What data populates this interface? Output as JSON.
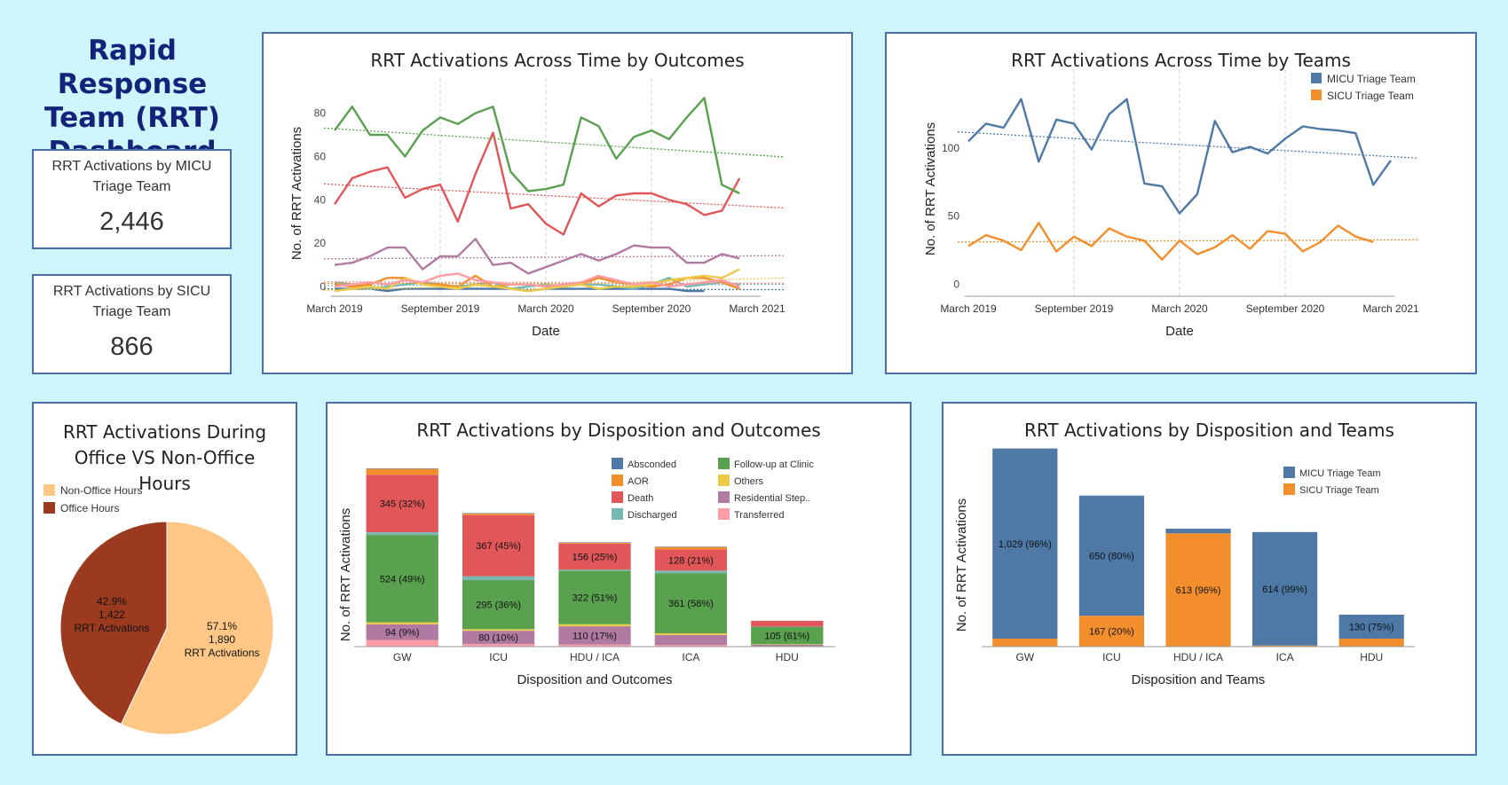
{
  "dashboard_title": "Rapid Response Team (RRT) Dashboard",
  "kpis": [
    {
      "label": "RRT Activations by MICU Triage Team",
      "value": "2,446"
    },
    {
      "label": "RRT Activations by SICU Triage Team",
      "value": "866"
    }
  ],
  "colors": {
    "micu": "#4e79a7",
    "sicu": "#f28e2b",
    "death": "#e15759",
    "discharged": "#76b7b2",
    "followup": "#59a14f",
    "others": "#edc948",
    "residential": "#b07aa1",
    "transferred": "#ff9da7",
    "absconded": "#4e79a7",
    "aor": "#f28e2b",
    "office": "#9c3a1f",
    "nonoffice": "#ffc785"
  },
  "chart_data": [
    {
      "id": "outcomes_time",
      "type": "line",
      "title": "RRT Activations Across Time by Outcomes",
      "xlabel": "Date",
      "ylabel": "No. of RRT Activations",
      "x_ticks": [
        "March 2019",
        "September 2019",
        "March 2020",
        "September 2020",
        "March 2021"
      ],
      "y_ticks": [
        0,
        20,
        40,
        60,
        80
      ],
      "ylim": [
        -2,
        88
      ],
      "x": [
        "2019-03",
        "2019-04",
        "2019-05",
        "2019-06",
        "2019-07",
        "2019-08",
        "2019-09",
        "2019-10",
        "2019-11",
        "2019-12",
        "2020-01",
        "2020-02",
        "2020-03",
        "2020-04",
        "2020-05",
        "2020-06",
        "2020-07",
        "2020-08",
        "2020-09",
        "2020-10",
        "2020-11",
        "2020-12",
        "2021-01",
        "2021-02",
        "2021-03"
      ],
      "trendlines": true,
      "series": [
        {
          "name": "Follow-up at Clinic",
          "color": "#59a14f",
          "values": [
            72,
            83,
            70,
            70,
            60,
            72,
            78,
            75,
            80,
            83,
            53,
            44,
            45,
            47,
            78,
            74,
            59,
            69,
            72,
            68,
            78,
            87,
            47,
            43,
            null
          ]
        },
        {
          "name": "Death",
          "color": "#e15759",
          "values": [
            38,
            50,
            53,
            55,
            41,
            45,
            47,
            30,
            52,
            71,
            36,
            38,
            29,
            24,
            43,
            37,
            42,
            43,
            43,
            40,
            38,
            33,
            35,
            50,
            null
          ]
        },
        {
          "name": "Residential Step..",
          "color": "#b07aa1",
          "values": [
            10,
            11,
            14,
            18,
            18,
            8,
            14,
            14,
            22,
            10,
            11,
            6,
            9,
            12,
            15,
            12,
            15,
            19,
            18,
            18,
            11,
            11,
            15,
            13,
            null
          ]
        },
        {
          "name": "Transferred",
          "color": "#ff9da7",
          "values": [
            0,
            1,
            2,
            1,
            3,
            2,
            5,
            6,
            3,
            2,
            1,
            1,
            0,
            1,
            2,
            5,
            3,
            1,
            2,
            0,
            1,
            2,
            3,
            0,
            null
          ]
        },
        {
          "name": "Others",
          "color": "#edc948",
          "values": [
            -2,
            -1,
            0,
            -1,
            4,
            1,
            0,
            -1,
            1,
            0,
            -1,
            -2,
            -1,
            0,
            1,
            -1,
            0,
            0,
            1,
            3,
            4,
            5,
            4,
            8,
            null
          ]
        },
        {
          "name": "AOR",
          "color": "#f28e2b",
          "values": [
            1,
            0,
            1,
            4,
            4,
            1,
            1,
            0,
            5,
            0,
            1,
            1,
            0,
            0,
            1,
            4,
            2,
            1,
            0,
            1,
            4,
            4,
            2,
            -1,
            null
          ]
        },
        {
          "name": "Discharged",
          "color": "#76b7b2",
          "values": [
            2,
            1,
            -1,
            0,
            1,
            2,
            1,
            0,
            1,
            2,
            -1,
            0,
            1,
            0,
            1,
            1,
            0,
            -1,
            1,
            4,
            0,
            1,
            2,
            1,
            null
          ]
        },
        {
          "name": "Absconded",
          "color": "#4e79a7",
          "values": [
            -1,
            -1,
            -1,
            -2,
            -1,
            -1,
            -1,
            -1,
            -1,
            -1,
            -1,
            -2,
            -1,
            -1,
            -1,
            -1,
            -1,
            -1,
            -1,
            -1,
            -2,
            -2,
            null,
            null,
            null
          ]
        }
      ]
    },
    {
      "id": "teams_time",
      "type": "line",
      "title": "RRT Activations Across Time by Teams",
      "xlabel": "Date",
      "ylabel": "No. of RRT Activations",
      "x_ticks": [
        "March 2019",
        "September 2019",
        "March 2020",
        "September 2020",
        "March 2021"
      ],
      "y_ticks": [
        0,
        50,
        100
      ],
      "ylim": [
        -5,
        145
      ],
      "x": [
        "2019-03",
        "2019-04",
        "2019-05",
        "2019-06",
        "2019-07",
        "2019-08",
        "2019-09",
        "2019-10",
        "2019-11",
        "2019-12",
        "2020-01",
        "2020-02",
        "2020-03",
        "2020-04",
        "2020-05",
        "2020-06",
        "2020-07",
        "2020-08",
        "2020-09",
        "2020-10",
        "2020-11",
        "2020-12",
        "2021-01",
        "2021-02",
        "2021-03"
      ],
      "trendlines": true,
      "legend": [
        "MICU Triage Team",
        "SICU Triage Team"
      ],
      "series": [
        {
          "name": "MICU Triage Team",
          "color": "#4e79a7",
          "values": [
            105,
            118,
            115,
            136,
            90,
            121,
            118,
            99,
            125,
            136,
            74,
            72,
            52,
            66,
            120,
            97,
            101,
            96,
            107,
            116,
            114,
            113,
            111,
            73,
            91
          ]
        },
        {
          "name": "SICU Triage Team",
          "color": "#f28e2b",
          "values": [
            28,
            36,
            32,
            25,
            45,
            24,
            35,
            28,
            41,
            35,
            32,
            18,
            32,
            22,
            27,
            36,
            26,
            39,
            37,
            24,
            31,
            43,
            35,
            31,
            null
          ]
        }
      ]
    },
    {
      "id": "office_hours",
      "type": "pie",
      "title": "RRT Activations During Office VS Non-Office Hours",
      "legend": [
        "Non-Office Hours",
        "Office Hours"
      ],
      "slices": [
        {
          "label": "Non-Office Hours",
          "value": 1890,
          "pct": "57.1%",
          "count": "1,890",
          "unit": "RRT Activations",
          "color": "#ffc785"
        },
        {
          "label": "Office Hours",
          "value": 1422,
          "pct": "42.9%",
          "count": "1,422",
          "unit": "RRT Activations",
          "color": "#9c3a1f"
        }
      ]
    },
    {
      "id": "disposition_outcomes",
      "type": "bar",
      "stacked": true,
      "title": "RRT Activations by Disposition and Outcomes",
      "xlabel": "Disposition and Outcomes",
      "ylabel": "No. of RRT Activations",
      "ylim": [
        0,
        1075
      ],
      "categories": [
        "GW",
        "ICU",
        "HDU / ICA",
        "ICA",
        "HDU"
      ],
      "legend": [
        "Absconded",
        "AOR",
        "Death",
        "Discharged",
        "Follow-up at Clinic",
        "Others",
        "Residential Step..",
        "Transferred"
      ],
      "series": [
        {
          "name": "Transferred",
          "color": "#ff9da7",
          "values": [
            40,
            15,
            12,
            10,
            3
          ]
        },
        {
          "name": "Residential Step..",
          "color": "#b07aa1",
          "values": [
            94,
            80,
            110,
            60,
            8
          ]
        },
        {
          "name": "Others",
          "color": "#edc948",
          "values": [
            12,
            10,
            12,
            10,
            3
          ]
        },
        {
          "name": "Follow-up at Clinic",
          "color": "#59a14f",
          "values": [
            524,
            295,
            322,
            361,
            105
          ]
        },
        {
          "name": "Discharged",
          "color": "#76b7b2",
          "values": [
            16,
            22,
            6,
            15,
            1
          ]
        },
        {
          "name": "Death",
          "color": "#e15759",
          "values": [
            345,
            367,
            156,
            128,
            35
          ]
        },
        {
          "name": "AOR",
          "color": "#f28e2b",
          "values": [
            36,
            10,
            6,
            14,
            0
          ]
        },
        {
          "name": "Absconded",
          "color": "#4e79a7",
          "values": [
            2,
            2,
            2,
            2,
            0
          ]
        }
      ],
      "labels": [
        {
          "series": "Residential Step..",
          "cat": 0,
          "text": "94 (9%)"
        },
        {
          "series": "Follow-up at Clinic",
          "cat": 0,
          "text": "524 (49%)"
        },
        {
          "series": "Death",
          "cat": 0,
          "text": "345 (32%)"
        },
        {
          "series": "Residential Step..",
          "cat": 1,
          "text": "80 (10%)"
        },
        {
          "series": "Follow-up at Clinic",
          "cat": 1,
          "text": "295 (36%)"
        },
        {
          "series": "Death",
          "cat": 1,
          "text": "367 (45%)"
        },
        {
          "series": "Residential Step..",
          "cat": 2,
          "text": "110 (17%)"
        },
        {
          "series": "Follow-up at Clinic",
          "cat": 2,
          "text": "322 (51%)"
        },
        {
          "series": "Death",
          "cat": 2,
          "text": "156 (25%)"
        },
        {
          "series": "Follow-up at Clinic",
          "cat": 3,
          "text": "361 (58%)"
        },
        {
          "series": "Death",
          "cat": 3,
          "text": "128 (21%)"
        },
        {
          "series": "Follow-up at Clinic",
          "cat": 4,
          "text": "105 (61%)"
        }
      ]
    },
    {
      "id": "disposition_teams",
      "type": "bar",
      "stacked": true,
      "title": "RRT Activations by Disposition and Teams",
      "xlabel": "Disposition and Teams",
      "ylabel": "No. of RRT Activations",
      "ylim": [
        0,
        1075
      ],
      "categories": [
        "GW",
        "ICU",
        "HDU / ICA",
        "ICA",
        "HDU"
      ],
      "legend": [
        "MICU Triage Team",
        "SICU Triage Team"
      ],
      "series": [
        {
          "name": "SICU Triage Team",
          "color": "#f28e2b",
          "values": [
            43,
            167,
            613,
            6,
            43
          ]
        },
        {
          "name": "MICU Triage Team",
          "color": "#4e79a7",
          "values": [
            1029,
            650,
            25,
            614,
            130
          ]
        }
      ],
      "labels": [
        {
          "series": "MICU Triage Team",
          "cat": 0,
          "text": "1,029 (96%)"
        },
        {
          "series": "MICU Triage Team",
          "cat": 1,
          "text": "650 (80%)"
        },
        {
          "series": "SICU Triage Team",
          "cat": 1,
          "text": "167 (20%)"
        },
        {
          "series": "SICU Triage Team",
          "cat": 2,
          "text": "613 (96%)"
        },
        {
          "series": "MICU Triage Team",
          "cat": 3,
          "text": "614 (99%)"
        },
        {
          "series": "MICU Triage Team",
          "cat": 4,
          "text": "130 (75%)"
        }
      ]
    }
  ]
}
